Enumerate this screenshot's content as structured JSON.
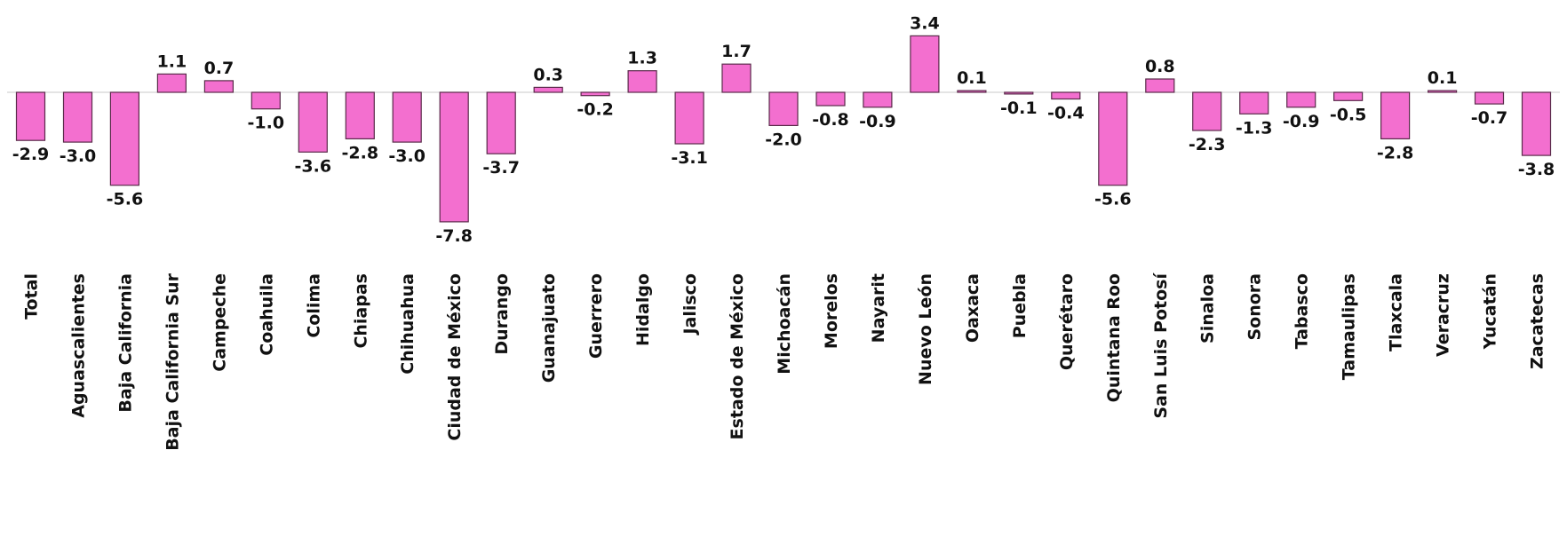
{
  "chart_data": {
    "type": "bar",
    "title": "",
    "xlabel": "",
    "ylabel": "",
    "ylim": [
      -7.8,
      3.4
    ],
    "grid": false,
    "legend": "none",
    "bar_color": "#f36fcf",
    "bar_edge_color": "#5a2a4a",
    "categories": [
      "Total",
      "Aguascalientes",
      "Baja California",
      "Baja California Sur",
      "Campeche",
      "Coahuila",
      "Colima",
      "Chiapas",
      "Chihuahua",
      "Ciudad de México",
      "Durango",
      "Guanajuato",
      "Guerrero",
      "Hidalgo",
      "Jalisco",
      "Estado de México",
      "Michoacán",
      "Morelos",
      "Nayarit",
      "Nuevo León",
      "Oaxaca",
      "Puebla",
      "Querétaro",
      "Quintana Roo",
      "San Luis Potosí",
      "Sinaloa",
      "Sonora",
      "Tabasco",
      "Tamaulipas",
      "Tlaxcala",
      "Veracruz",
      "Yucatán",
      "Zacatecas"
    ],
    "values": [
      -2.9,
      -3.0,
      -5.6,
      1.1,
      0.7,
      -1.0,
      -3.6,
      -2.8,
      -3.0,
      -7.8,
      -3.7,
      0.3,
      -0.2,
      1.3,
      -3.1,
      1.7,
      -2.0,
      -0.8,
      -0.9,
      3.4,
      0.1,
      -0.1,
      -0.4,
      -5.6,
      0.8,
      -2.3,
      -1.3,
      -0.9,
      -0.5,
      -2.8,
      0.1,
      -0.7,
      -3.8
    ],
    "value_labels": [
      "-2.9",
      "-3.0",
      "-5.6",
      "1.1",
      "0.7",
      "-1.0",
      "-3.6",
      "-2.8",
      "-3.0",
      "-7.8",
      "-3.7",
      "0.3",
      "-0.2",
      "1.3",
      "-3.1",
      "1.7",
      "-2.0",
      "-0.8",
      "-0.9",
      "3.4",
      "0.1",
      "-0.1",
      "-0.4",
      "-5.6",
      "0.8",
      "-2.3",
      "-1.3",
      "-0.9",
      "-0.5",
      "-2.8",
      "0.1",
      "-0.7",
      "-3.8"
    ]
  }
}
